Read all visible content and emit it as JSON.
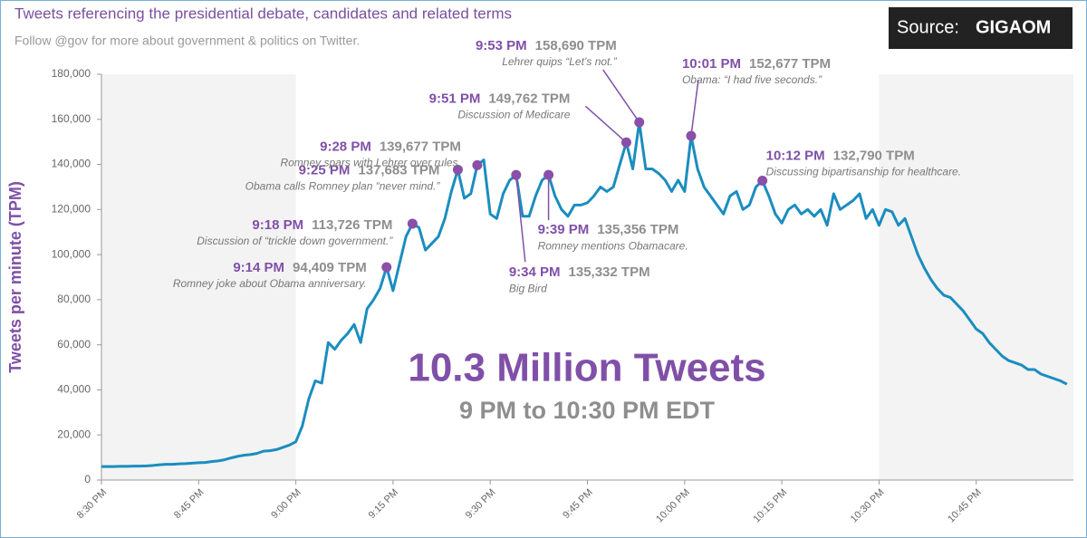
{
  "chart_data": {
    "type": "line",
    "title": "Tweets referencing the presidential debate, candidates and related terms",
    "subtitle": "Follow @gov for more about government & politics on Twitter.",
    "source_label": "Source:",
    "source_name": "GIGAOM",
    "headline": "10.3 Million Tweets",
    "subheadline": "9 PM to 10:30 PM EDT",
    "y_label": "Tweets per minute (TPM)",
    "xlim": [
      0,
      150
    ],
    "xticks": [
      {
        "value": 0,
        "label": "8:30 PM"
      },
      {
        "value": 15,
        "label": "8:45 PM"
      },
      {
        "value": 30,
        "label": "9:00 PM"
      },
      {
        "value": 45,
        "label": "9:15 PM"
      },
      {
        "value": 60,
        "label": "9:30 PM"
      },
      {
        "value": 75,
        "label": "9:45 PM"
      },
      {
        "value": 90,
        "label": "10:00 PM"
      },
      {
        "value": 105,
        "label": "10:15 PM"
      },
      {
        "value": 120,
        "label": "10:30 PM"
      },
      {
        "value": 135,
        "label": "10:45 PM"
      }
    ],
    "ylim": [
      0,
      180000
    ],
    "yticks": [
      0,
      {
        "value": 20000,
        "label": "20,000"
      },
      {
        "value": 40000,
        "label": "40,000"
      },
      {
        "value": 60000,
        "label": "60,000"
      },
      {
        "value": 80000,
        "label": "80,000"
      },
      {
        "value": 100000,
        "label": "100,000"
      },
      {
        "value": 120000,
        "label": "120,000"
      },
      {
        "value": 140000,
        "label": "140,000"
      },
      {
        "value": 160000,
        "label": "160,000"
      },
      {
        "value": 180000,
        "label": "180,000"
      }
    ],
    "color": "#1b8dbf",
    "marker_color": "#8a4fa8",
    "x": [
      0,
      1,
      2,
      3,
      4,
      5,
      6,
      7,
      8,
      9,
      10,
      11,
      12,
      13,
      14,
      15,
      16,
      17,
      18,
      19,
      20,
      21,
      22,
      23,
      24,
      25,
      26,
      27,
      28,
      29,
      30,
      31,
      32,
      33,
      34,
      35,
      36,
      37,
      38,
      39,
      40,
      41,
      42,
      43,
      44,
      45,
      46,
      47,
      48,
      49,
      50,
      51,
      52,
      53,
      54,
      55,
      56,
      57,
      58,
      59,
      60,
      61,
      62,
      63,
      64,
      65,
      66,
      67,
      68,
      69,
      70,
      71,
      72,
      73,
      74,
      75,
      76,
      77,
      78,
      79,
      80,
      81,
      82,
      83,
      84,
      85,
      86,
      87,
      88,
      89,
      90,
      91,
      92,
      93,
      94,
      95,
      96,
      97,
      98,
      99,
      100,
      101,
      102,
      103,
      104,
      105,
      106,
      107,
      108,
      109,
      110,
      111,
      112,
      113,
      114,
      115,
      116,
      117,
      118,
      119,
      120,
      121,
      122,
      123,
      124,
      125,
      126,
      127,
      128,
      129,
      130,
      131,
      132,
      133,
      134,
      135,
      136,
      137,
      138,
      139,
      140,
      141,
      142,
      143,
      144,
      145,
      146,
      147,
      148,
      149
    ],
    "values": [
      6000,
      6000,
      6000,
      6100,
      6100,
      6200,
      6200,
      6300,
      6500,
      6800,
      7000,
      7000,
      7200,
      7300,
      7500,
      7700,
      7800,
      8200,
      8500,
      9000,
      9800,
      10500,
      11000,
      11300,
      11800,
      12800,
      13000,
      13500,
      14500,
      15500,
      17000,
      24000,
      36000,
      44000,
      43000,
      61000,
      58000,
      62000,
      65000,
      69000,
      61000,
      76000,
      80000,
      85000,
      94409,
      84000,
      96000,
      108000,
      113726,
      112000,
      102000,
      105000,
      108000,
      116000,
      128000,
      137683,
      125000,
      127000,
      139677,
      142000,
      118000,
      116000,
      127000,
      133000,
      135332,
      117000,
      117000,
      126000,
      133000,
      135356,
      126000,
      120000,
      117000,
      122000,
      122000,
      123000,
      126000,
      130000,
      128000,
      130000,
      140000,
      149762,
      138000,
      158690,
      138000,
      138000,
      136000,
      133000,
      128000,
      133000,
      128000,
      152677,
      138000,
      130000,
      126000,
      122000,
      118000,
      126000,
      128000,
      120000,
      122000,
      130000,
      132790,
      126000,
      118000,
      114000,
      120000,
      122000,
      118000,
      120000,
      117000,
      120000,
      113000,
      127000,
      120000,
      122000,
      124000,
      127000,
      116000,
      120000,
      113000,
      120000,
      119000,
      113000,
      116000,
      108000,
      100000,
      94000,
      89000,
      85000,
      82000,
      81000,
      78000,
      75000,
      71000,
      67000,
      65000,
      61000,
      58000,
      55000,
      53000,
      52000,
      51000,
      49000,
      49000,
      47000,
      46000,
      45000,
      44000,
      42500
    ],
    "annotations": [
      {
        "time": "9:14 PM",
        "x": 44,
        "value": 94409,
        "value_label": "94,409 TPM",
        "note": "Romney joke about Obama anniversary."
      },
      {
        "time": "9:18 PM",
        "x": 48,
        "value": 113726,
        "value_label": "113,726 TPM",
        "note": "Discussion of “trickle down government.”"
      },
      {
        "time": "9:25 PM",
        "x": 55,
        "value": 137683,
        "value_label": "137,683 TPM",
        "note": "Obama calls Romney plan “never mind.”"
      },
      {
        "time": "9:28 PM",
        "x": 58,
        "value": 139677,
        "value_label": "139,677 TPM",
        "note": "Romney spars with Lehrer over rules."
      },
      {
        "time": "9:34 PM",
        "x": 64,
        "value": 135332,
        "value_label": "135,332 TPM",
        "note": "Big Bird"
      },
      {
        "time": "9:39 PM",
        "x": 69,
        "value": 135356,
        "value_label": "135,356 TPM",
        "note": "Romney mentions Obamacare."
      },
      {
        "time": "9:51 PM",
        "x": 81,
        "value": 149762,
        "value_label": "149,762 TPM",
        "note": "Discussion of Medicare"
      },
      {
        "time": "9:53 PM",
        "x": 83,
        "value": 158690,
        "value_label": "158,690 TPM",
        "note": "Lehrer quips “Let’s not.”"
      },
      {
        "time": "10:01 PM",
        "x": 91,
        "value": 152677,
        "value_label": "152,677 TPM",
        "note": "Obama: “I had five seconds.”"
      },
      {
        "time": "10:12 PM",
        "x": 102,
        "value": 132790,
        "value_label": "132,790 TPM",
        "note": "Discussing bipartisanship for healthcare."
      }
    ]
  }
}
